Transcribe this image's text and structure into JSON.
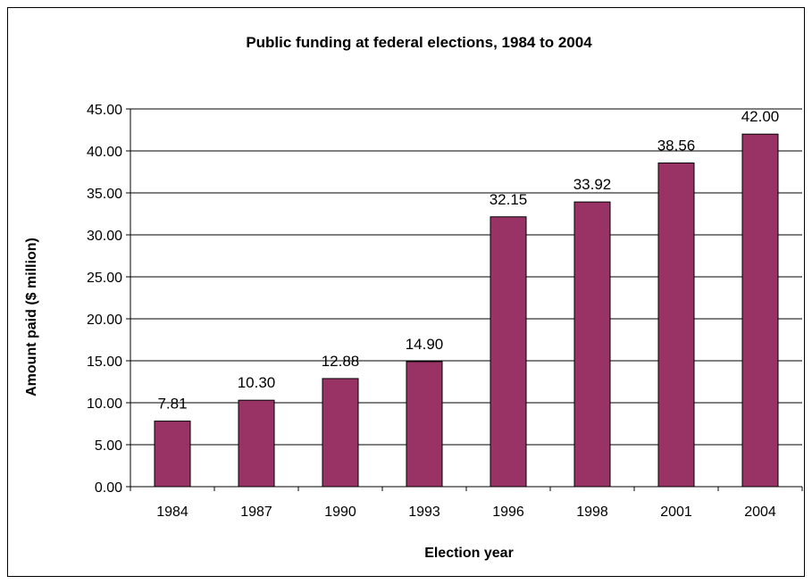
{
  "chart_data": {
    "type": "bar",
    "title": "Public funding at federal elections, 1984 to 2004",
    "xlabel": "Election year",
    "ylabel": "Amount paid ($ million)",
    "categories": [
      "1984",
      "1987",
      "1990",
      "1993",
      "1996",
      "1998",
      "2001",
      "2004"
    ],
    "values": [
      7.81,
      10.3,
      12.88,
      14.9,
      32.15,
      33.92,
      38.56,
      42.0
    ],
    "data_labels": [
      "7.81",
      "10.30",
      "12.88",
      "14.90",
      "32.15",
      "33.92",
      "38.56",
      "42.00"
    ],
    "ylim": [
      0,
      45
    ],
    "yticks": [
      "0.00",
      "5.00",
      "10.00",
      "15.00",
      "20.00",
      "25.00",
      "30.00",
      "35.00",
      "40.00",
      "45.00"
    ],
    "grid": true,
    "legend": "none",
    "bar_color": "#993366"
  }
}
